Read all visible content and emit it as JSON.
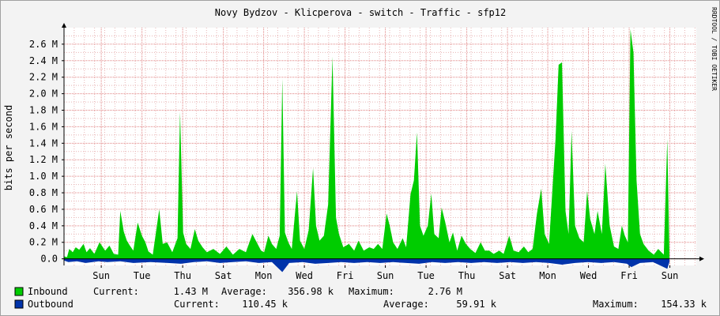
{
  "chart_data": {
    "type": "area",
    "title": "Novy Bydzov - Klicperova - switch - Traffic - sfp12",
    "ylabel": "bits per second",
    "watermark": "RRDTOOL / TOBI OETIKER",
    "ylim": [
      -0.08,
      2.8
    ],
    "y_unit_label": "M",
    "yticks": [
      0.0,
      0.2,
      0.4,
      0.6,
      0.8,
      1.0,
      1.2,
      1.4,
      1.6,
      1.8,
      2.0,
      2.2,
      2.4,
      2.6
    ],
    "ytick_labels": [
      "0.0",
      "0.2 M",
      "0.4 M",
      "0.6 M",
      "0.8 M",
      "1.0 M",
      "1.2 M",
      "1.4 M",
      "1.6 M",
      "1.8 M",
      "2.0 M",
      "2.2 M",
      "2.4 M",
      "2.6 M"
    ],
    "xlim": [
      0,
      14.6
    ],
    "xticks": [
      {
        "label": "Sun",
        "x": 0.86
      },
      {
        "label": "Tue",
        "x": 1.8
      },
      {
        "label": "Thu",
        "x": 2.74
      },
      {
        "label": "Sat",
        "x": 3.68
      },
      {
        "label": "Mon",
        "x": 4.61
      },
      {
        "label": "Wed",
        "x": 5.55
      },
      {
        "label": "Fri",
        "x": 6.49
      },
      {
        "label": "Sun",
        "x": 7.42
      },
      {
        "label": "Tue",
        "x": 8.36
      },
      {
        "label": "Thu",
        "x": 9.3
      },
      {
        "label": "Sat",
        "x": 10.24
      },
      {
        "label": "Mon",
        "x": 11.17
      },
      {
        "label": "Wed",
        "x": 12.11
      },
      {
        "label": "Fri",
        "x": 13.05
      },
      {
        "label": "Sun",
        "x": 13.99
      }
    ],
    "grid": true,
    "colors": {
      "inbound": "#00cc00",
      "outbound": "#0033aa",
      "grid_minor": "#e8b4b4",
      "grid_major": "#e08080",
      "zero_line": "#000000",
      "background": "#ffffff",
      "frame_bg": "#f3f3f3"
    },
    "series": [
      {
        "name": "Inbound",
        "points": [
          [
            0,
            0.03
          ],
          [
            0.07,
            0.02
          ],
          [
            0.12,
            0.12
          ],
          [
            0.2,
            0.08
          ],
          [
            0.27,
            0.14
          ],
          [
            0.35,
            0.11
          ],
          [
            0.45,
            0.18
          ],
          [
            0.52,
            0.08
          ],
          [
            0.6,
            0.13
          ],
          [
            0.7,
            0.06
          ],
          [
            0.82,
            0.2
          ],
          [
            0.95,
            0.1
          ],
          [
            1.05,
            0.16
          ],
          [
            1.15,
            0.06
          ],
          [
            1.25,
            0.05
          ],
          [
            1.3,
            0.58
          ],
          [
            1.38,
            0.33
          ],
          [
            1.45,
            0.22
          ],
          [
            1.52,
            0.16
          ],
          [
            1.6,
            0.1
          ],
          [
            1.7,
            0.44
          ],
          [
            1.8,
            0.28
          ],
          [
            1.88,
            0.2
          ],
          [
            1.95,
            0.09
          ],
          [
            2.05,
            0.05
          ],
          [
            2.2,
            0.6
          ],
          [
            2.28,
            0.18
          ],
          [
            2.38,
            0.2
          ],
          [
            2.5,
            0.08
          ],
          [
            2.62,
            0.25
          ],
          [
            2.68,
            1.78
          ],
          [
            2.75,
            0.32
          ],
          [
            2.82,
            0.18
          ],
          [
            2.92,
            0.12
          ],
          [
            3.02,
            0.36
          ],
          [
            3.1,
            0.22
          ],
          [
            3.2,
            0.14
          ],
          [
            3.3,
            0.08
          ],
          [
            3.45,
            0.12
          ],
          [
            3.6,
            0.06
          ],
          [
            3.75,
            0.15
          ],
          [
            3.9,
            0.05
          ],
          [
            4.05,
            0.12
          ],
          [
            4.2,
            0.08
          ],
          [
            4.35,
            0.3
          ],
          [
            4.45,
            0.2
          ],
          [
            4.55,
            0.1
          ],
          [
            4.62,
            0.08
          ],
          [
            4.72,
            0.28
          ],
          [
            4.8,
            0.18
          ],
          [
            4.9,
            0.12
          ],
          [
            4.98,
            0.28
          ],
          [
            5.04,
            2.18
          ],
          [
            5.1,
            0.32
          ],
          [
            5.18,
            0.2
          ],
          [
            5.26,
            0.12
          ],
          [
            5.38,
            0.82
          ],
          [
            5.45,
            0.22
          ],
          [
            5.55,
            0.12
          ],
          [
            5.65,
            0.35
          ],
          [
            5.75,
            1.1
          ],
          [
            5.82,
            0.4
          ],
          [
            5.9,
            0.22
          ],
          [
            6.0,
            0.28
          ],
          [
            6.1,
            0.66
          ],
          [
            6.2,
            2.45
          ],
          [
            6.28,
            0.5
          ],
          [
            6.35,
            0.3
          ],
          [
            6.45,
            0.14
          ],
          [
            6.58,
            0.18
          ],
          [
            6.7,
            0.1
          ],
          [
            6.8,
            0.22
          ],
          [
            6.92,
            0.1
          ],
          [
            7.05,
            0.14
          ],
          [
            7.15,
            0.12
          ],
          [
            7.25,
            0.18
          ],
          [
            7.35,
            0.12
          ],
          [
            7.45,
            0.55
          ],
          [
            7.52,
            0.4
          ],
          [
            7.6,
            0.2
          ],
          [
            7.7,
            0.12
          ],
          [
            7.82,
            0.25
          ],
          [
            7.9,
            0.14
          ],
          [
            8.0,
            0.78
          ],
          [
            8.08,
            0.95
          ],
          [
            8.15,
            1.53
          ],
          [
            8.22,
            0.4
          ],
          [
            8.3,
            0.28
          ],
          [
            8.4,
            0.4
          ],
          [
            8.48,
            0.79
          ],
          [
            8.55,
            0.3
          ],
          [
            8.65,
            0.25
          ],
          [
            8.72,
            0.62
          ],
          [
            8.8,
            0.45
          ],
          [
            8.9,
            0.2
          ],
          [
            8.98,
            0.32
          ],
          [
            9.08,
            0.1
          ],
          [
            9.18,
            0.28
          ],
          [
            9.28,
            0.18
          ],
          [
            9.38,
            0.12
          ],
          [
            9.5,
            0.07
          ],
          [
            9.62,
            0.2
          ],
          [
            9.72,
            0.1
          ],
          [
            9.82,
            0.1
          ],
          [
            9.92,
            0.06
          ],
          [
            10.05,
            0.1
          ],
          [
            10.15,
            0.06
          ],
          [
            10.28,
            0.28
          ],
          [
            10.38,
            0.1
          ],
          [
            10.5,
            0.08
          ],
          [
            10.62,
            0.15
          ],
          [
            10.72,
            0.08
          ],
          [
            10.82,
            0.12
          ],
          [
            10.92,
            0.55
          ],
          [
            11.02,
            0.85
          ],
          [
            11.1,
            0.3
          ],
          [
            11.2,
            0.18
          ],
          [
            11.35,
            1.45
          ],
          [
            11.42,
            2.35
          ],
          [
            11.5,
            2.38
          ],
          [
            11.58,
            0.58
          ],
          [
            11.65,
            0.3
          ],
          [
            11.72,
            1.55
          ],
          [
            11.8,
            0.4
          ],
          [
            11.9,
            0.25
          ],
          [
            12.0,
            0.2
          ],
          [
            12.08,
            0.82
          ],
          [
            12.15,
            0.48
          ],
          [
            12.25,
            0.3
          ],
          [
            12.32,
            0.58
          ],
          [
            12.42,
            0.3
          ],
          [
            12.5,
            1.15
          ],
          [
            12.6,
            0.4
          ],
          [
            12.7,
            0.15
          ],
          [
            12.8,
            0.12
          ],
          [
            12.88,
            0.4
          ],
          [
            12.95,
            0.28
          ],
          [
            13.02,
            0.2
          ],
          [
            13.08,
            2.78
          ],
          [
            13.15,
            2.5
          ],
          [
            13.22,
            0.95
          ],
          [
            13.3,
            0.3
          ],
          [
            13.38,
            0.18
          ],
          [
            13.5,
            0.1
          ],
          [
            13.62,
            0.05
          ],
          [
            13.72,
            0.12
          ],
          [
            13.85,
            0.05
          ],
          [
            13.93,
            1.45
          ],
          [
            13.98,
            0.05
          ]
        ]
      },
      {
        "name": "Outbound",
        "points": [
          [
            0,
            -0.02
          ],
          [
            0.1,
            -0.04
          ],
          [
            0.3,
            -0.03
          ],
          [
            0.5,
            -0.05
          ],
          [
            0.8,
            -0.03
          ],
          [
            1.0,
            -0.04
          ],
          [
            1.3,
            -0.03
          ],
          [
            1.6,
            -0.05
          ],
          [
            2.0,
            -0.04
          ],
          [
            2.4,
            -0.05
          ],
          [
            2.7,
            -0.06
          ],
          [
            3.0,
            -0.04
          ],
          [
            3.3,
            -0.03
          ],
          [
            3.6,
            -0.05
          ],
          [
            3.9,
            -0.04
          ],
          [
            4.2,
            -0.03
          ],
          [
            4.5,
            -0.05
          ],
          [
            4.8,
            -0.04
          ],
          [
            5.04,
            -0.16
          ],
          [
            5.2,
            -0.05
          ],
          [
            5.5,
            -0.04
          ],
          [
            5.8,
            -0.06
          ],
          [
            6.1,
            -0.05
          ],
          [
            6.4,
            -0.04
          ],
          [
            6.7,
            -0.05
          ],
          [
            7.0,
            -0.04
          ],
          [
            7.3,
            -0.05
          ],
          [
            7.6,
            -0.04
          ],
          [
            7.9,
            -0.05
          ],
          [
            8.2,
            -0.06
          ],
          [
            8.5,
            -0.04
          ],
          [
            8.8,
            -0.05
          ],
          [
            9.1,
            -0.04
          ],
          [
            9.4,
            -0.05
          ],
          [
            9.7,
            -0.04
          ],
          [
            10.0,
            -0.05
          ],
          [
            10.3,
            -0.04
          ],
          [
            10.6,
            -0.05
          ],
          [
            10.9,
            -0.04
          ],
          [
            11.2,
            -0.05
          ],
          [
            11.5,
            -0.07
          ],
          [
            11.8,
            -0.05
          ],
          [
            12.1,
            -0.04
          ],
          [
            12.4,
            -0.05
          ],
          [
            12.7,
            -0.04
          ],
          [
            13.0,
            -0.06
          ],
          [
            13.1,
            -0.1
          ],
          [
            13.3,
            -0.05
          ],
          [
            13.6,
            -0.04
          ],
          [
            13.93,
            -0.12
          ],
          [
            13.98,
            -0.04
          ]
        ]
      }
    ],
    "legend": {
      "placement": "bottom",
      "rows": [
        {
          "name": "Inbound",
          "current_label": "Current:",
          "current": "1.43 M",
          "average_label": "Average:",
          "average": "356.98 k",
          "maximum_label": "Maximum:",
          "maximum": "2.76 M"
        },
        {
          "name": "Outbound",
          "current_label": "Current:",
          "current": "110.45 k",
          "average_label": "Average:",
          "average": "59.91 k",
          "maximum_label": "Maximum:",
          "maximum": "154.33 k"
        }
      ]
    }
  }
}
